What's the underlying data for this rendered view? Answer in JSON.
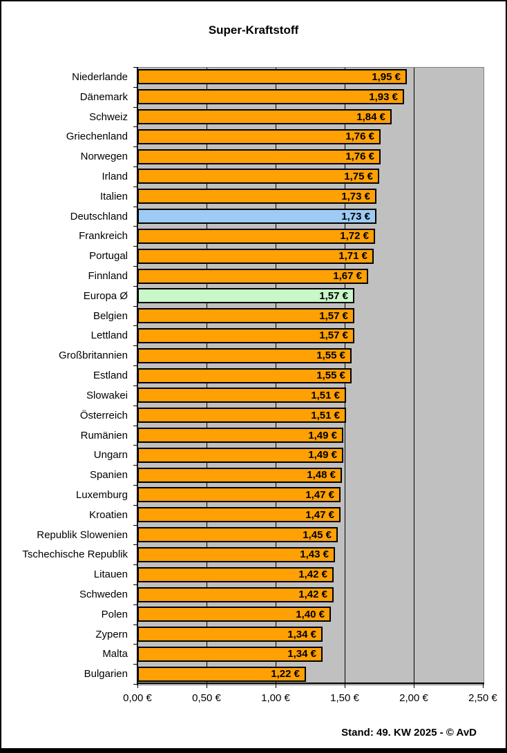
{
  "title": "Super-Kraftstoff",
  "footer": "Stand: 49. KW 2025 - © AvD",
  "colors": {
    "bar_default": "#FFA005",
    "bar_germany": "#9DCBF5",
    "bar_average": "#C9F7C9",
    "bar_border": "#000000",
    "plot_background": "#C0C0C0",
    "gridline": "#000000"
  },
  "chart_data": {
    "type": "bar",
    "orientation": "horizontal",
    "title": "Super-Kraftstoff",
    "xlabel": "",
    "ylabel": "",
    "xlim": [
      0,
      2.5
    ],
    "grid": true,
    "x_tick_values": [
      0,
      0.5,
      1.0,
      1.5,
      2.0,
      2.5
    ],
    "x_tick_labels": [
      "0,00 €",
      "0,50 €",
      "1,00 €",
      "1,50 €",
      "2,00 €",
      "2,50 €"
    ],
    "bars": [
      {
        "category": "Niederlande",
        "value": 1.95,
        "label": "1,95 €",
        "style": "default"
      },
      {
        "category": "Dänemark",
        "value": 1.93,
        "label": "1,93 €",
        "style": "default"
      },
      {
        "category": "Schweiz",
        "value": 1.84,
        "label": "1,84 €",
        "style": "default"
      },
      {
        "category": "Griechenland",
        "value": 1.76,
        "label": "1,76 €",
        "style": "default"
      },
      {
        "category": "Norwegen",
        "value": 1.76,
        "label": "1,76 €",
        "style": "default"
      },
      {
        "category": "Irland",
        "value": 1.75,
        "label": "1,75 €",
        "style": "default"
      },
      {
        "category": "Italien",
        "value": 1.73,
        "label": "1,73 €",
        "style": "default"
      },
      {
        "category": "Deutschland",
        "value": 1.73,
        "label": "1,73 €",
        "style": "germany"
      },
      {
        "category": "Frankreich",
        "value": 1.72,
        "label": "1,72 €",
        "style": "default"
      },
      {
        "category": "Portugal",
        "value": 1.71,
        "label": "1,71 €",
        "style": "default"
      },
      {
        "category": "Finnland",
        "value": 1.67,
        "label": "1,67 €",
        "style": "default"
      },
      {
        "category": "Europa Ø",
        "value": 1.57,
        "label": "1,57 €",
        "style": "average"
      },
      {
        "category": "Belgien",
        "value": 1.57,
        "label": "1,57 €",
        "style": "default"
      },
      {
        "category": "Lettland",
        "value": 1.57,
        "label": "1,57 €",
        "style": "default"
      },
      {
        "category": "Großbritannien",
        "value": 1.55,
        "label": "1,55 €",
        "style": "default"
      },
      {
        "category": "Estland",
        "value": 1.55,
        "label": "1,55 €",
        "style": "default"
      },
      {
        "category": "Slowakei",
        "value": 1.51,
        "label": "1,51 €",
        "style": "default"
      },
      {
        "category": "Österreich",
        "value": 1.51,
        "label": "1,51 €",
        "style": "default"
      },
      {
        "category": "Rumänien",
        "value": 1.49,
        "label": "1,49 €",
        "style": "default"
      },
      {
        "category": "Ungarn",
        "value": 1.49,
        "label": "1,49 €",
        "style": "default"
      },
      {
        "category": "Spanien",
        "value": 1.48,
        "label": "1,48 €",
        "style": "default"
      },
      {
        "category": "Luxemburg",
        "value": 1.47,
        "label": "1,47 €",
        "style": "default"
      },
      {
        "category": "Kroatien",
        "value": 1.47,
        "label": "1,47 €",
        "style": "default"
      },
      {
        "category": "Republik Slowenien",
        "value": 1.45,
        "label": "1,45 €",
        "style": "default"
      },
      {
        "category": "Tschechische Republik",
        "value": 1.43,
        "label": "1,43 €",
        "style": "default"
      },
      {
        "category": "Litauen",
        "value": 1.42,
        "label": "1,42 €",
        "style": "default"
      },
      {
        "category": "Schweden",
        "value": 1.42,
        "label": "1,42 €",
        "style": "default"
      },
      {
        "category": "Polen",
        "value": 1.4,
        "label": "1,40 €",
        "style": "default"
      },
      {
        "category": "Zypern",
        "value": 1.34,
        "label": "1,34 €",
        "style": "default"
      },
      {
        "category": "Malta",
        "value": 1.34,
        "label": "1,34 €",
        "style": "default"
      },
      {
        "category": "Bulgarien",
        "value": 1.22,
        "label": "1,22 €",
        "style": "default"
      }
    ]
  }
}
